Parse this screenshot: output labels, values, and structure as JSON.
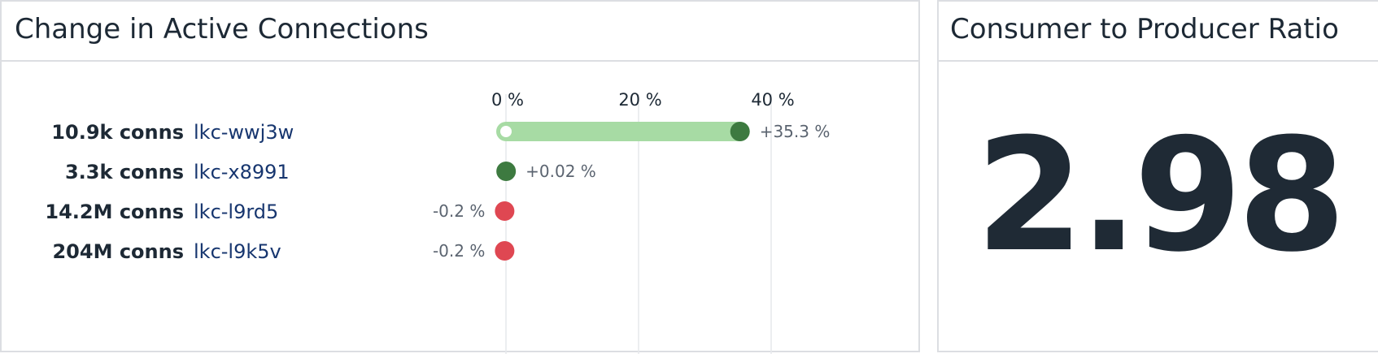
{
  "left_panel": {
    "title": "Change in Active Connections"
  },
  "right_panel": {
    "title": "Consumer to Producer Ratio",
    "value": "2.98"
  },
  "chart_data": {
    "type": "bar",
    "xlim": [
      0,
      40
    ],
    "ticks": [
      {
        "value": 0,
        "label": "0 %"
      },
      {
        "value": 20,
        "label": "20 %"
      },
      {
        "value": 40,
        "label": "40 %"
      }
    ],
    "grid": true,
    "rows": [
      {
        "count": "10.9k conns",
        "name": "lkc-wwj3w",
        "value": 35.3,
        "label": "+35.3 %"
      },
      {
        "count": "3.3k conns",
        "name": "lkc-x8991",
        "value": 0.02,
        "label": "+0.02 %"
      },
      {
        "count": "14.2M conns",
        "name": "lkc-l9rd5",
        "value": -0.2,
        "label": "-0.2 %"
      },
      {
        "count": "204M conns",
        "name": "lkc-l9k5v",
        "value": -0.2,
        "label": "-0.2 %"
      }
    ],
    "colors": {
      "positive_bar": "#a7dba4",
      "positive_dot": "#3d7a40",
      "negative_dot": "#df4752",
      "grid": "#e6e8ec"
    }
  }
}
